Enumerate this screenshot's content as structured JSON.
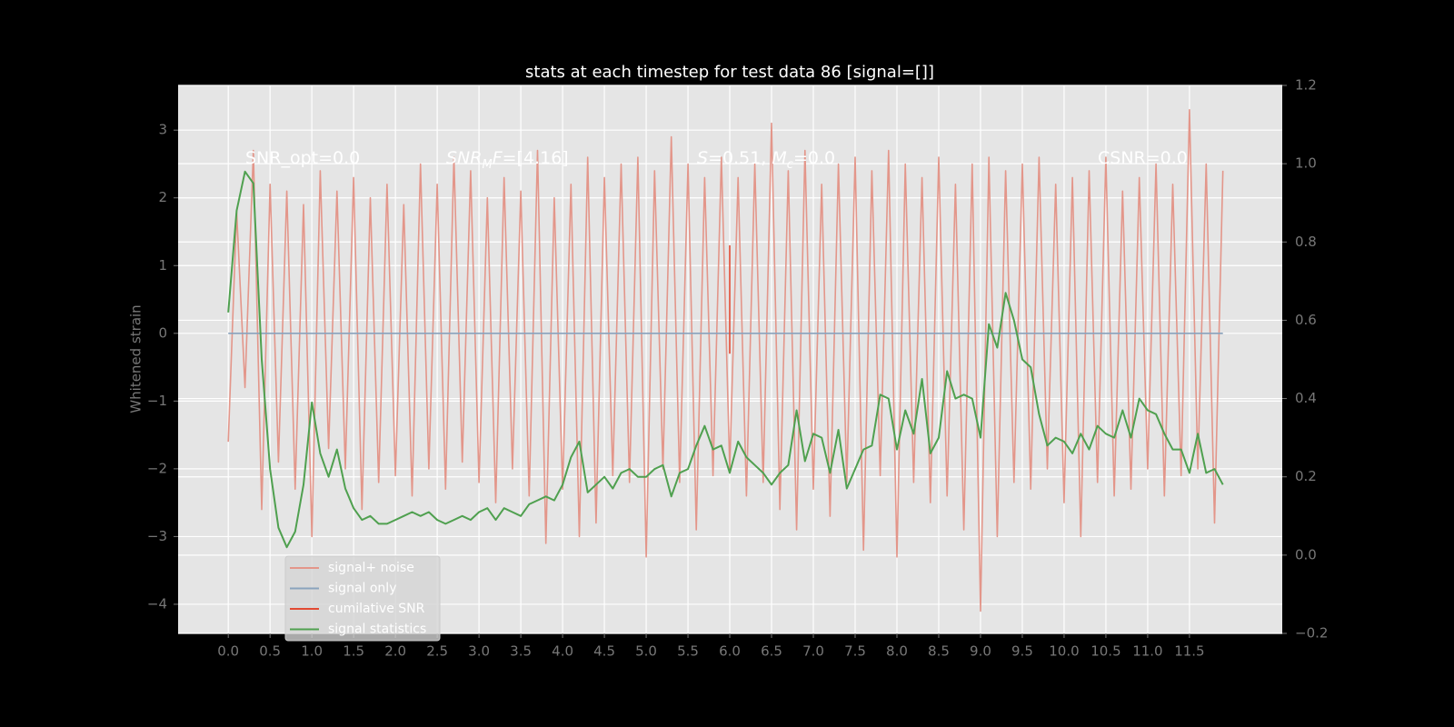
{
  "chart_data": {
    "type": "line",
    "title": "stats at each timestep for test data 86 [signal=[]]",
    "y_label": "Whitened strain",
    "grid": true,
    "xlim": [
      -0.6,
      12.61
    ],
    "ylim": [
      -4.43,
      3.66
    ],
    "y2lim": [
      -0.2,
      1.2
    ],
    "xticks": [
      {
        "value": 0,
        "label": "0.0"
      },
      {
        "value": 0.5,
        "label": "0.5"
      },
      {
        "value": 1,
        "label": "1.0"
      },
      {
        "value": 1.5,
        "label": "1.5"
      },
      {
        "value": 2,
        "label": "2.0"
      },
      {
        "value": 2.5,
        "label": "2.5"
      },
      {
        "value": 3,
        "label": "3.0"
      },
      {
        "value": 3.5,
        "label": "3.5"
      },
      {
        "value": 4,
        "label": "4.0"
      },
      {
        "value": 4.5,
        "label": "4.5"
      },
      {
        "value": 5,
        "label": "5.0"
      },
      {
        "value": 5.5,
        "label": "5.5"
      },
      {
        "value": 6,
        "label": "6.0"
      },
      {
        "value": 6.5,
        "label": "6.5"
      },
      {
        "value": 7,
        "label": "7.0"
      },
      {
        "value": 7.5,
        "label": "7.5"
      },
      {
        "value": 8,
        "label": "8.0"
      },
      {
        "value": 8.5,
        "label": "8.5"
      },
      {
        "value": 9,
        "label": "9.0"
      },
      {
        "value": 9.5,
        "label": "9.5"
      },
      {
        "value": 10,
        "label": "10.0"
      },
      {
        "value": 10.5,
        "label": "10.5"
      },
      {
        "value": 11,
        "label": "11.0"
      },
      {
        "value": 11.5,
        "label": "11.5"
      }
    ],
    "yticks": [
      {
        "value": -4,
        "label": "−4"
      },
      {
        "value": -3,
        "label": "−3"
      },
      {
        "value": -2,
        "label": "−2"
      },
      {
        "value": -1,
        "label": "−1"
      },
      0,
      1,
      2,
      3
    ],
    "y2ticks": [
      {
        "value": -0.2,
        "label": "−0.2"
      },
      {
        "value": 0,
        "label": "0.0"
      },
      {
        "value": 0.2,
        "label": "0.2"
      },
      {
        "value": 0.4,
        "label": "0.4"
      },
      {
        "value": 0.6,
        "label": "0.6"
      },
      {
        "value": 0.8,
        "label": "0.8"
      },
      {
        "value": 1,
        "label": "1.0"
      },
      {
        "value": 1.2,
        "label": "1.2"
      }
    ],
    "annotations": [
      [
        {
          "text": "SNR_opt=0.0"
        }
      ],
      [
        {
          "text": "SNR",
          "italic": true
        },
        {
          "text": "M",
          "italic": true,
          "sub": true
        },
        {
          "text": "F",
          "italic": true
        },
        {
          "text": "=[4.16]"
        }
      ],
      [
        {
          "text": "S",
          "italic": true
        },
        {
          "text": "=0.51,  "
        },
        {
          "text": "M",
          "italic": true
        },
        {
          "text": "c",
          "italic": true,
          "sub": true
        },
        {
          "text": "=0.0"
        }
      ],
      [
        {
          "text": "CSNR=0.0"
        }
      ]
    ],
    "x": [
      0,
      0.1,
      0.2,
      0.3,
      0.4,
      0.5,
      0.6,
      0.7,
      0.8,
      0.9,
      1,
      1.1,
      1.2,
      1.3,
      1.4,
      1.5,
      1.6,
      1.7,
      1.8,
      1.9,
      2,
      2.1,
      2.2,
      2.3,
      2.4,
      2.5,
      2.6,
      2.7,
      2.8,
      2.9,
      3,
      3.1,
      3.2,
      3.3,
      3.4,
      3.5,
      3.6,
      3.7,
      3.8,
      3.9,
      4,
      4.1,
      4.2,
      4.3,
      4.4,
      4.5,
      4.6,
      4.7,
      4.8,
      4.9,
      5,
      5.1,
      5.2,
      5.3,
      5.4,
      5.5,
      5.6,
      5.7,
      5.8,
      5.9,
      6,
      6.1,
      6.2,
      6.3,
      6.4,
      6.5,
      6.6,
      6.7,
      6.8,
      6.9,
      7,
      7.1,
      7.2,
      7.3,
      7.4,
      7.5,
      7.6,
      7.7,
      7.8,
      7.9,
      8,
      8.1,
      8.2,
      8.3,
      8.4,
      8.5,
      8.6,
      8.7,
      8.8,
      8.9,
      9,
      9.1,
      9.2,
      9.3,
      9.4,
      9.5,
      9.6,
      9.7,
      9.8,
      9.9,
      10,
      10.1,
      10.2,
      10.3,
      10.4,
      10.5,
      10.6,
      10.7,
      10.8,
      10.9,
      11,
      11.1,
      11.2,
      11.3,
      11.4,
      11.5,
      11.6,
      11.7,
      11.8,
      11.9
    ],
    "series": [
      {
        "name": "signal+ noise",
        "color": "#e3968a",
        "values": [
          -1.6,
          1.8,
          -0.8,
          2.7,
          -2.6,
          2.2,
          -1.9,
          2.1,
          -2.3,
          1.9,
          -3.0,
          2.4,
          -1.7,
          2.1,
          -2.0,
          2.3,
          -2.6,
          2.0,
          -2.2,
          2.2,
          -2.1,
          1.9,
          -2.4,
          2.5,
          -2.0,
          2.2,
          -2.3,
          2.6,
          -1.9,
          2.4,
          -2.2,
          2.0,
          -2.5,
          2.3,
          -2.0,
          2.1,
          -2.4,
          2.7,
          -3.1,
          2.0,
          -2.3,
          2.2,
          -3.0,
          2.6,
          -2.8,
          2.3,
          -2.1,
          2.5,
          -2.2,
          2.6,
          -3.3,
          2.4,
          -2.0,
          2.9,
          -2.2,
          2.5,
          -2.9,
          2.3,
          -2.1,
          2.6,
          -2.0,
          2.3,
          -2.4,
          2.5,
          -2.2,
          3.1,
          -2.6,
          2.4,
          -2.9,
          2.7,
          -2.3,
          2.2,
          -2.7,
          2.5,
          -2.2,
          2.6,
          -3.2,
          2.4,
          -2.1,
          2.7,
          -3.3,
          2.5,
          -2.2,
          2.3,
          -2.5,
          2.6,
          -2.4,
          2.2,
          -2.9,
          2.5,
          -4.1,
          2.6,
          -3.0,
          2.4,
          -2.2,
          2.5,
          -2.3,
          2.6,
          -2.0,
          2.2,
          -2.5,
          2.3,
          -3.0,
          2.4,
          -2.2,
          2.6,
          -2.4,
          2.1,
          -2.3,
          2.3,
          -2.0,
          2.5,
          -2.4,
          2.2,
          -2.1,
          3.3,
          -2.0,
          2.5,
          -2.8,
          2.4
        ]
      },
      {
        "name": "signal only",
        "color": "#8aa3bd",
        "values": [
          0,
          0,
          0,
          0,
          0,
          0,
          0,
          0,
          0,
          0,
          0,
          0,
          0,
          0,
          0,
          0,
          0,
          0,
          0,
          0,
          0,
          0,
          0,
          0,
          0,
          0,
          0,
          0,
          0,
          0,
          0,
          0,
          0,
          0,
          0,
          0,
          0,
          0,
          0,
          0,
          0,
          0,
          0,
          0,
          0,
          0,
          0,
          0,
          0,
          0,
          0,
          0,
          0,
          0,
          0,
          0,
          0,
          0,
          0,
          0,
          0,
          0,
          0,
          0,
          0,
          0,
          0,
          0,
          0,
          0,
          0,
          0,
          0,
          0,
          0,
          0,
          0,
          0,
          0,
          0,
          0,
          0,
          0,
          0,
          0,
          0,
          0,
          0,
          0,
          0,
          0,
          0,
          0,
          0,
          0,
          0,
          0,
          0,
          0,
          0,
          0,
          0,
          0,
          0,
          0,
          0,
          0,
          0,
          0,
          0,
          0,
          0,
          0,
          0,
          0,
          0,
          0,
          0,
          0,
          0
        ]
      },
      {
        "name": "cumilative SNR",
        "color": "#e24a33",
        "x": [
          6,
          6
        ],
        "values": [
          1.3,
          -0.3
        ]
      },
      {
        "name": "signal statistics",
        "color": "#4fa04f",
        "axis": "y2",
        "values": [
          0.62,
          0.88,
          0.98,
          0.95,
          0.5,
          0.22,
          0.07,
          0.02,
          0.06,
          0.18,
          0.39,
          0.26,
          0.2,
          0.27,
          0.17,
          0.12,
          0.09,
          0.1,
          0.08,
          0.08,
          0.09,
          0.1,
          0.11,
          0.1,
          0.11,
          0.09,
          0.08,
          0.09,
          0.1,
          0.09,
          0.11,
          0.12,
          0.09,
          0.12,
          0.11,
          0.1,
          0.13,
          0.14,
          0.15,
          0.14,
          0.18,
          0.25,
          0.29,
          0.16,
          0.18,
          0.2,
          0.17,
          0.21,
          0.22,
          0.2,
          0.2,
          0.22,
          0.23,
          0.15,
          0.21,
          0.22,
          0.28,
          0.33,
          0.27,
          0.28,
          0.21,
          0.29,
          0.25,
          0.23,
          0.21,
          0.18,
          0.21,
          0.23,
          0.37,
          0.24,
          0.31,
          0.3,
          0.21,
          0.32,
          0.17,
          0.22,
          0.27,
          0.28,
          0.41,
          0.4,
          0.27,
          0.37,
          0.31,
          0.45,
          0.26,
          0.3,
          0.47,
          0.4,
          0.41,
          0.4,
          0.3,
          0.59,
          0.53,
          0.67,
          0.6,
          0.5,
          0.48,
          0.36,
          0.28,
          0.3,
          0.29,
          0.26,
          0.31,
          0.27,
          0.33,
          0.31,
          0.3,
          0.37,
          0.3,
          0.4,
          0.37,
          0.36,
          0.31,
          0.27,
          0.27,
          0.21,
          0.31,
          0.21,
          0.22,
          0.18
        ]
      }
    ]
  }
}
